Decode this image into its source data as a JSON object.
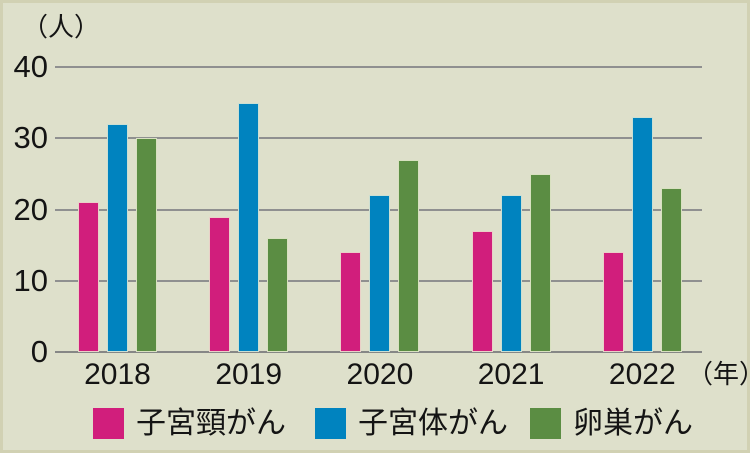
{
  "chart_data": {
    "type": "bar",
    "title": "",
    "y_unit_label": "（人）",
    "x_unit_label": "（年）",
    "categories": [
      "2018",
      "2019",
      "2020",
      "2021",
      "2022"
    ],
    "series": [
      {
        "id": "cervical-cancer",
        "name": "子宮頸がん",
        "color": "#d11e7c",
        "values": [
          21,
          19,
          14,
          17,
          14
        ]
      },
      {
        "id": "uterine-cancer",
        "name": "子宮体がん",
        "color": "#0083bf",
        "values": [
          32,
          35,
          22,
          22,
          33
        ]
      },
      {
        "id": "ovarian-cancer",
        "name": "卵巣がん",
        "color": "#5b8d43",
        "values": [
          30,
          16,
          27,
          25,
          23
        ]
      }
    ],
    "ylim": [
      0,
      40
    ],
    "yticks": [
      0,
      10,
      20,
      30,
      40
    ],
    "grid": true,
    "legend_position": "bottom"
  },
  "colors": {
    "background": "#dee0cb",
    "gridline": "#8f9090",
    "text": "#141414"
  }
}
